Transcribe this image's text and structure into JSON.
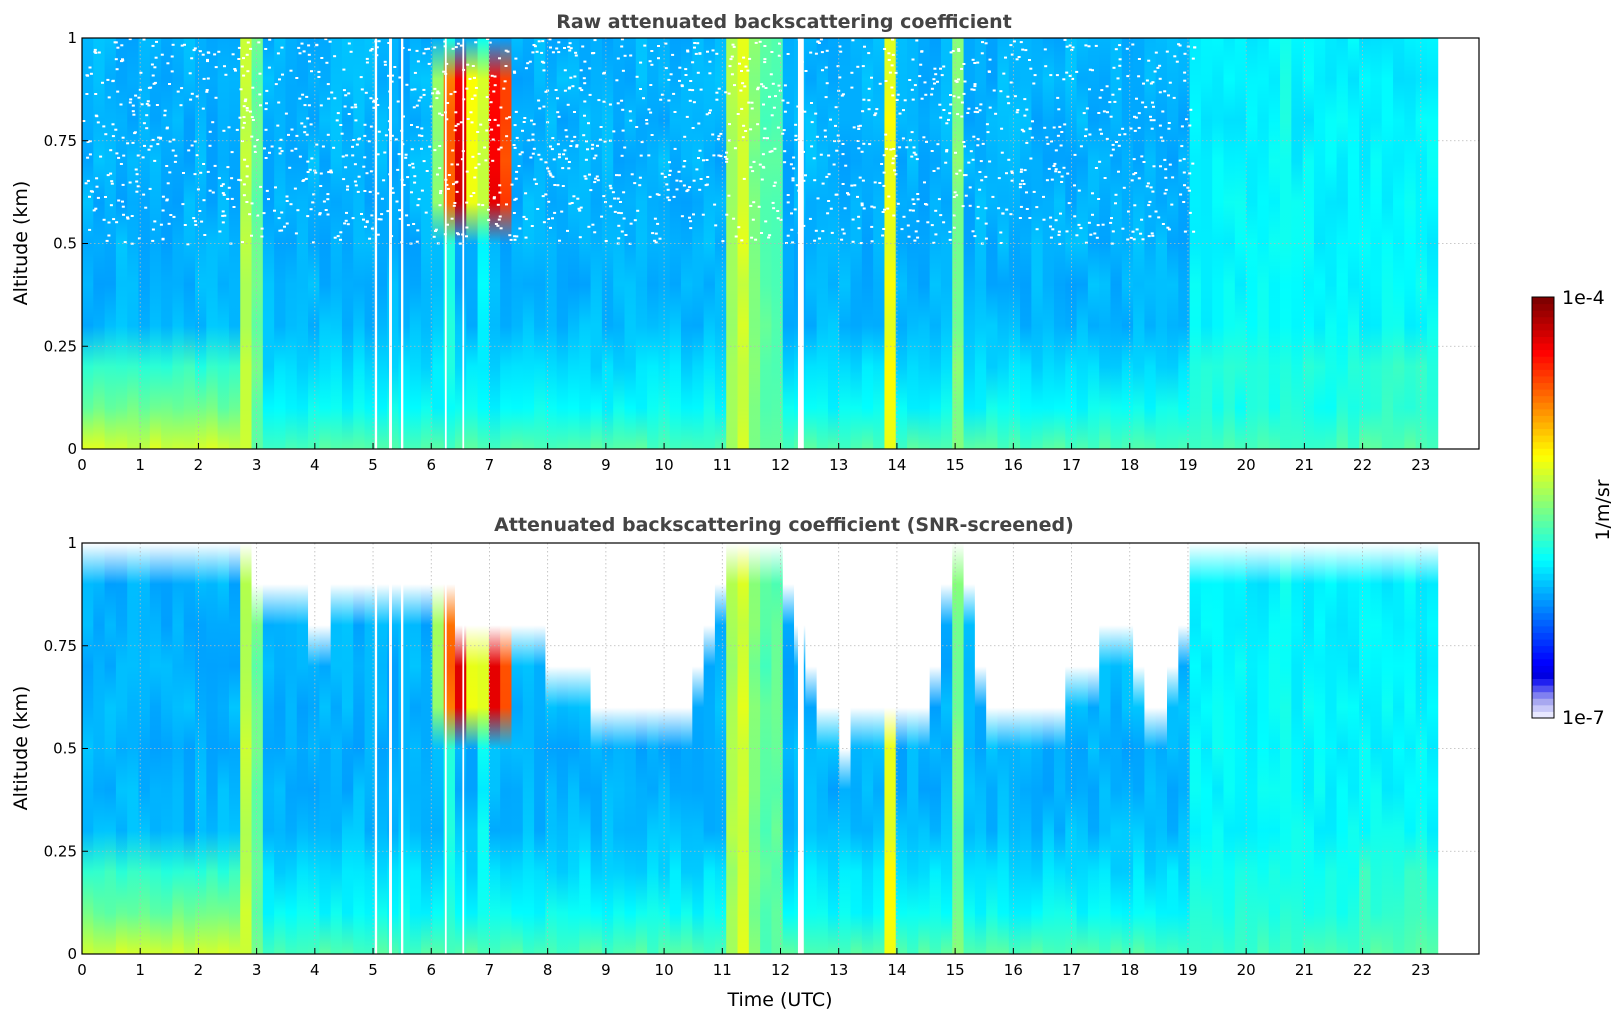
{
  "chart_data": [
    {
      "type": "heatmap",
      "title": "Raw attenuated backscattering coefficient",
      "xlabel": "",
      "ylabel": "Altitude (km)",
      "xlim": [
        0,
        24
      ],
      "ylim": [
        0,
        1
      ],
      "x_ticks": [
        "0",
        "1",
        "2",
        "3",
        "4",
        "5",
        "6",
        "7",
        "8",
        "9",
        "10",
        "11",
        "12",
        "13",
        "14",
        "15",
        "16",
        "17",
        "18",
        "19",
        "20",
        "21",
        "22",
        "23"
      ],
      "y_ticks": [
        "0",
        "0.25",
        "0.5",
        "0.75",
        "1"
      ],
      "grid": true,
      "data_extent_x": [
        0,
        23.3
      ],
      "colorscale": "jet",
      "features": [
        {
          "kind": "near-surface enhanced layer",
          "x": [
            0,
            2.7
          ],
          "y": [
            0,
            0.3
          ]
        },
        {
          "kind": "high-backscatter plume",
          "x": [
            6.0,
            7.4
          ],
          "y": [
            0.55,
            0.95
          ]
        },
        {
          "kind": "elevated aerosol layer",
          "x": [
            19.1,
            23.3
          ],
          "y": [
            0,
            1.0
          ]
        }
      ]
    },
    {
      "type": "heatmap",
      "title": "Attenuated backscattering coefficient (SNR-screened)",
      "xlabel": "Time (UTC)",
      "ylabel": "Altitude (km)",
      "xlim": [
        0,
        24
      ],
      "ylim": [
        0,
        1
      ],
      "x_ticks": [
        "0",
        "1",
        "2",
        "3",
        "4",
        "5",
        "6",
        "7",
        "8",
        "9",
        "10",
        "11",
        "12",
        "13",
        "14",
        "15",
        "16",
        "17",
        "18",
        "19",
        "20",
        "21",
        "22",
        "23"
      ],
      "y_ticks": [
        "0",
        "0.25",
        "0.5",
        "0.75",
        "1"
      ],
      "grid": true,
      "data_extent_x": [
        0,
        23.3
      ],
      "colorscale": "jet",
      "screened_top_profile": [
        [
          0,
          0.98
        ],
        [
          0.5,
          0.92
        ],
        [
          1.0,
          0.95
        ],
        [
          1.5,
          0.9
        ],
        [
          2.0,
          0.95
        ],
        [
          3.3,
          0.88
        ],
        [
          4.0,
          0.78
        ],
        [
          5.0,
          0.85
        ],
        [
          6.0,
          0.88
        ],
        [
          7.0,
          0.72
        ],
        [
          8.0,
          0.7
        ],
        [
          8.5,
          0.62
        ],
        [
          9.0,
          0.56
        ],
        [
          9.6,
          0.5
        ],
        [
          10.5,
          0.6
        ],
        [
          11.2,
          0.95
        ],
        [
          12.0,
          0.95
        ],
        [
          12.5,
          0.62
        ],
        [
          13.0,
          0.48
        ],
        [
          13.5,
          0.52
        ],
        [
          14.5,
          0.55
        ],
        [
          15.0,
          0.95
        ],
        [
          15.6,
          0.58
        ],
        [
          16.5,
          0.52
        ],
        [
          17.0,
          0.62
        ],
        [
          17.5,
          0.72
        ],
        [
          18.0,
          0.7
        ],
        [
          18.5,
          0.5
        ],
        [
          19.0,
          0.8
        ],
        [
          19.2,
          0.97
        ],
        [
          23.3,
          1.0
        ]
      ]
    }
  ],
  "colorbar": {
    "label": "1/m/sr",
    "max_label": "1e-4",
    "min_label": "1e-7",
    "scale": "log"
  },
  "colors": {
    "background": "#ffffff",
    "grid": "#b8b8b8",
    "title": "#444444"
  }
}
